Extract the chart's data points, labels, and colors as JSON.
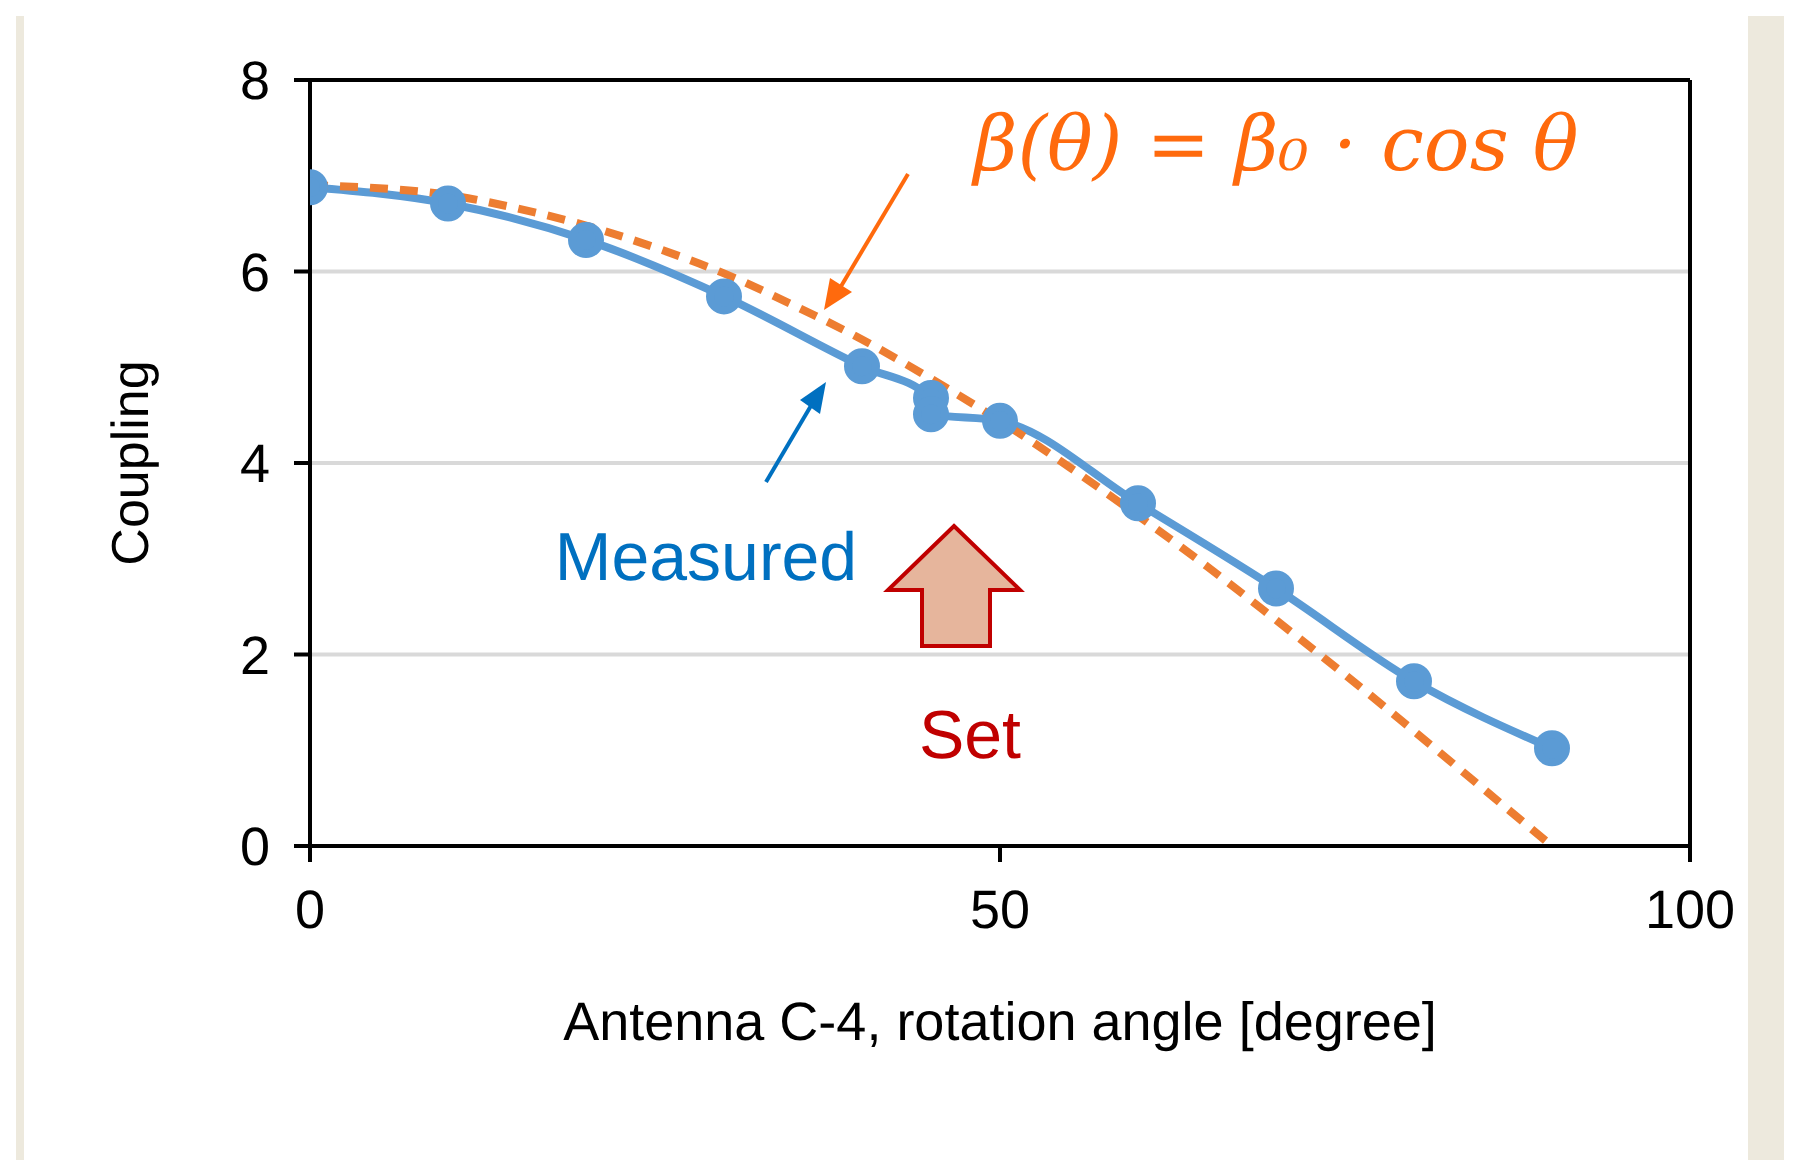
{
  "chart_data": {
    "type": "line",
    "xlabel": "Antenna C-4,  rotation angle [degree]",
    "ylabel": "Coupling",
    "xlim": [
      0,
      100
    ],
    "xticks": [
      0,
      50,
      100
    ],
    "ylim": [
      0,
      8
    ],
    "yticks": [
      0,
      2,
      4,
      6,
      8
    ],
    "grid": "y",
    "series": [
      {
        "name": "Measured",
        "color": "#5b9bd5",
        "marker": "circle",
        "line_style": "solid",
        "x": [
          0,
          10,
          20,
          30,
          40,
          45,
          45,
          50,
          60,
          70,
          80,
          90
        ],
        "values": [
          6.88,
          6.71,
          6.33,
          5.74,
          5.01,
          4.68,
          4.51,
          4.44,
          3.58,
          2.69,
          1.72,
          1.02
        ]
      },
      {
        "name": "β(θ) = β₀ · cos θ",
        "color": "#ed7d31",
        "marker": "none",
        "line_style": "dashed",
        "x": [
          0,
          5,
          10,
          15,
          20,
          25,
          30,
          35,
          40,
          45,
          50,
          55,
          60,
          65,
          70,
          75,
          80,
          85,
          90
        ],
        "values": [
          6.9,
          6.87,
          6.8,
          6.66,
          6.48,
          6.25,
          5.98,
          5.65,
          5.29,
          4.88,
          4.44,
          3.96,
          3.45,
          2.92,
          2.36,
          1.79,
          1.2,
          0.6,
          0
        ]
      }
    ],
    "annotations": [
      "Set"
    ]
  }
}
